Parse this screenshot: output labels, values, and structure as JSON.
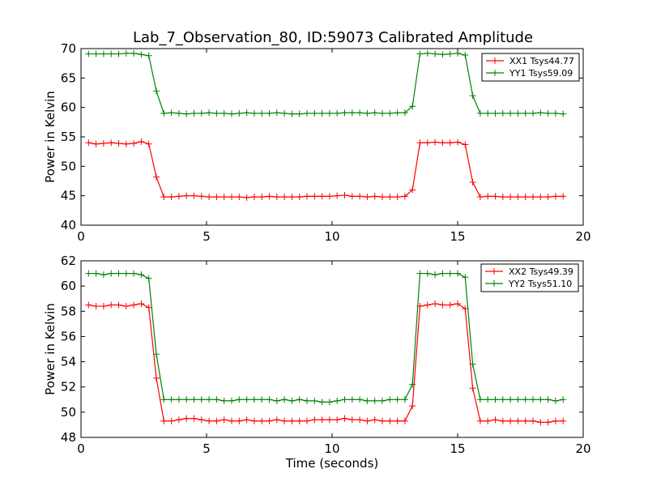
{
  "chart_data": [
    {
      "type": "line",
      "title": "Lab_7_Observation_80, ID:59073 Calibrated Amplitude",
      "xlabel": "",
      "ylabel": "Power in Kelvin",
      "xlim": [
        0,
        20
      ],
      "ylim": [
        40,
        70
      ],
      "xticks": [
        "0",
        "5",
        "10",
        "15",
        "20"
      ],
      "yticks": [
        "40",
        "45",
        "50",
        "55",
        "60",
        "65",
        "70"
      ],
      "grid": false,
      "legend_position": "top-right",
      "x": [
        0.3,
        0.6,
        0.9,
        1.2,
        1.5,
        1.8,
        2.1,
        2.4,
        2.7,
        3.0,
        3.3,
        3.6,
        3.9,
        4.2,
        4.5,
        4.8,
        5.1,
        5.4,
        5.7,
        6.0,
        6.3,
        6.6,
        6.9,
        7.2,
        7.5,
        7.8,
        8.1,
        8.4,
        8.7,
        9.0,
        9.3,
        9.6,
        9.9,
        10.2,
        10.5,
        10.8,
        11.1,
        11.4,
        11.7,
        12.0,
        12.3,
        12.6,
        12.9,
        13.2,
        13.5,
        13.8,
        14.1,
        14.4,
        14.7,
        15.0,
        15.3,
        15.6,
        15.9,
        16.2,
        16.5,
        16.8,
        17.1,
        17.4,
        17.7,
        18.0,
        18.3,
        18.6,
        18.9,
        19.2
      ],
      "series": [
        {
          "name": "XX1 Tsys44.77",
          "color": "#ff0000",
          "values": [
            54.0,
            53.8,
            53.9,
            54.0,
            53.9,
            53.8,
            53.9,
            54.2,
            53.8,
            48.2,
            44.8,
            44.8,
            44.9,
            45.0,
            45.0,
            44.9,
            44.8,
            44.8,
            44.8,
            44.8,
            44.8,
            44.7,
            44.8,
            44.8,
            44.9,
            44.8,
            44.8,
            44.8,
            44.8,
            44.9,
            44.9,
            44.9,
            44.9,
            45.0,
            45.1,
            44.9,
            44.9,
            44.8,
            44.9,
            44.8,
            44.8,
            44.8,
            44.9,
            46.0,
            54.0,
            54.0,
            54.1,
            54.0,
            54.0,
            54.1,
            53.7,
            47.3,
            44.8,
            44.9,
            44.9,
            44.8,
            44.8,
            44.8,
            44.8,
            44.8,
            44.8,
            44.8,
            44.9,
            44.9
          ]
        },
        {
          "name": "YY1 Tsys59.09",
          "color": "#008000",
          "values": [
            69.1,
            69.1,
            69.1,
            69.1,
            69.1,
            69.2,
            69.2,
            69.0,
            68.8,
            62.8,
            59.0,
            59.1,
            59.0,
            58.9,
            59.0,
            59.0,
            59.1,
            59.0,
            59.0,
            58.9,
            59.0,
            59.1,
            59.0,
            59.0,
            59.0,
            59.1,
            59.0,
            58.9,
            58.9,
            59.0,
            59.0,
            59.0,
            59.0,
            59.0,
            59.1,
            59.1,
            59.1,
            59.0,
            59.1,
            59.0,
            59.0,
            59.1,
            59.1,
            60.2,
            69.1,
            69.2,
            69.1,
            69.0,
            69.1,
            69.2,
            68.9,
            62.0,
            59.0,
            59.0,
            59.0,
            59.0,
            59.0,
            59.0,
            59.0,
            59.0,
            59.1,
            59.0,
            59.0,
            58.9
          ]
        }
      ]
    },
    {
      "type": "line",
      "title": "",
      "xlabel": "Time (seconds)",
      "ylabel": "Power in Kelvin",
      "xlim": [
        0,
        20
      ],
      "ylim": [
        48,
        62
      ],
      "xticks": [
        "0",
        "5",
        "10",
        "15",
        "20"
      ],
      "yticks": [
        "48",
        "50",
        "52",
        "54",
        "56",
        "58",
        "60",
        "62"
      ],
      "grid": false,
      "legend_position": "top-right",
      "x": [
        0.3,
        0.6,
        0.9,
        1.2,
        1.5,
        1.8,
        2.1,
        2.4,
        2.7,
        3.0,
        3.3,
        3.6,
        3.9,
        4.2,
        4.5,
        4.8,
        5.1,
        5.4,
        5.7,
        6.0,
        6.3,
        6.6,
        6.9,
        7.2,
        7.5,
        7.8,
        8.1,
        8.4,
        8.7,
        9.0,
        9.3,
        9.6,
        9.9,
        10.2,
        10.5,
        10.8,
        11.1,
        11.4,
        11.7,
        12.0,
        12.3,
        12.6,
        12.9,
        13.2,
        13.5,
        13.8,
        14.1,
        14.4,
        14.7,
        15.0,
        15.3,
        15.6,
        15.9,
        16.2,
        16.5,
        16.8,
        17.1,
        17.4,
        17.7,
        18.0,
        18.3,
        18.6,
        18.9,
        19.2
      ],
      "series": [
        {
          "name": "XX2 Tsys49.39",
          "color": "#ff0000",
          "values": [
            58.5,
            58.4,
            58.4,
            58.5,
            58.5,
            58.4,
            58.5,
            58.6,
            58.3,
            52.7,
            49.3,
            49.3,
            49.4,
            49.5,
            49.5,
            49.4,
            49.3,
            49.3,
            49.4,
            49.3,
            49.3,
            49.4,
            49.3,
            49.3,
            49.3,
            49.4,
            49.3,
            49.3,
            49.3,
            49.3,
            49.4,
            49.4,
            49.4,
            49.4,
            49.5,
            49.4,
            49.4,
            49.3,
            49.4,
            49.3,
            49.3,
            49.3,
            49.3,
            50.5,
            58.4,
            58.5,
            58.6,
            58.5,
            58.5,
            58.6,
            58.2,
            51.9,
            49.3,
            49.3,
            49.4,
            49.3,
            49.3,
            49.3,
            49.3,
            49.3,
            49.2,
            49.2,
            49.3,
            49.3
          ]
        },
        {
          "name": "YY2 Tsys51.10",
          "color": "#008000",
          "values": [
            61.0,
            61.0,
            60.9,
            61.0,
            61.0,
            61.0,
            61.0,
            60.9,
            60.6,
            54.6,
            51.0,
            51.0,
            51.0,
            51.0,
            51.0,
            51.0,
            51.0,
            51.0,
            50.9,
            50.9,
            51.0,
            51.0,
            51.0,
            51.0,
            51.0,
            50.9,
            51.0,
            50.9,
            51.0,
            50.9,
            50.9,
            50.8,
            50.8,
            50.9,
            51.0,
            51.0,
            51.0,
            50.9,
            50.9,
            50.9,
            51.0,
            51.0,
            51.0,
            52.2,
            61.0,
            61.0,
            60.9,
            61.0,
            61.0,
            61.0,
            60.7,
            53.8,
            51.0,
            51.0,
            51.0,
            51.0,
            51.0,
            51.0,
            51.0,
            51.0,
            51.0,
            51.0,
            50.9,
            51.0
          ]
        }
      ]
    }
  ]
}
